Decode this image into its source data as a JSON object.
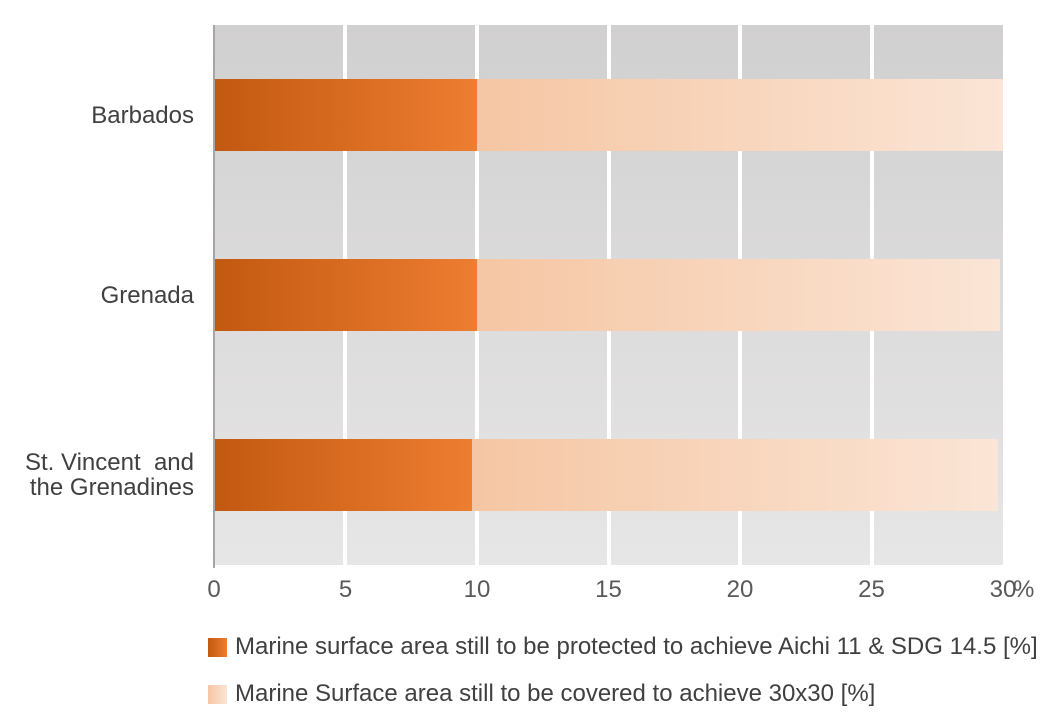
{
  "chart_data": {
    "type": "bar",
    "orientation": "horizontal",
    "stacked": true,
    "title": "",
    "categories": [
      "Barbados",
      "Grenada",
      "St. Vincent  and\nthe Grenadines"
    ],
    "series": [
      {
        "name": "Marine surface area still to be protected to achieve Aichi 11 & SDG 14.5 [%]",
        "values": [
          10,
          10,
          9.8
        ],
        "color_start": "#c25910",
        "color_end": "#ed7d31"
      },
      {
        "name": "Marine Surface area still to be covered to achieve 30x30 [%]",
        "values": [
          20,
          19.9,
          20
        ],
        "color_start": "#f5c6a3",
        "color_end": "#fbe5d6"
      }
    ],
    "xlim": [
      0,
      30
    ],
    "xticks": [
      0,
      5,
      10,
      15,
      20,
      25,
      30
    ],
    "xtick_labels": [
      "0",
      "5",
      "10",
      "15",
      "20",
      "25",
      "30"
    ],
    "x_unit": "%",
    "grid": "vertical-white-gridlines-on-gray-band",
    "legend_position": "bottom-left"
  },
  "styles": {
    "background": "#ffffff",
    "plot_bg_top": "#d1d0d0",
    "plot_bg_bottom": "#e7e6e6",
    "gridline_color": "#ffffff",
    "axis_line_color": "#a6a6a6",
    "category_label_color": "#404040",
    "tick_label_color": "#595959",
    "legend_text_color": "#404040"
  }
}
